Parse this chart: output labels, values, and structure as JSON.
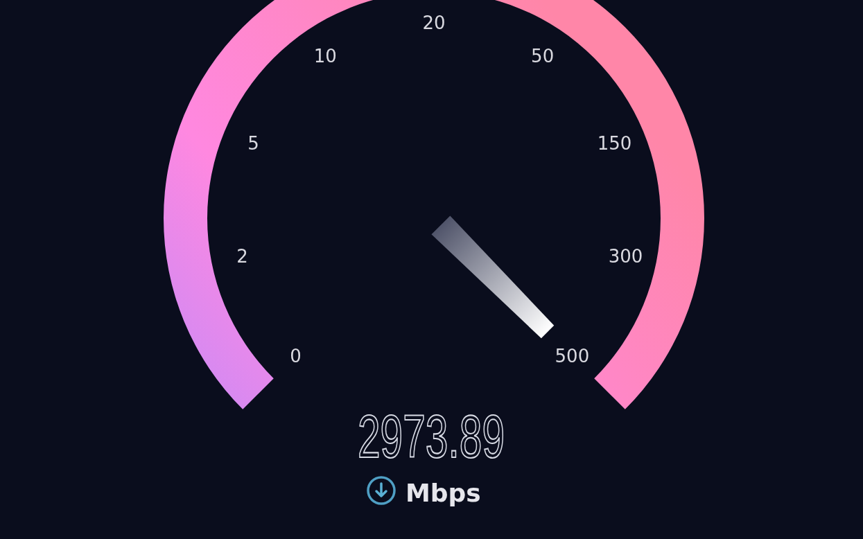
{
  "chart_data": {
    "type": "other",
    "categories": [
      "0",
      "2",
      "5",
      "10",
      "20",
      "50",
      "150",
      "300",
      "500"
    ],
    "values": [
      null,
      null,
      null,
      null,
      null,
      null,
      null,
      null,
      2973.89
    ],
    "data_labels": true,
    "ylabel": "Mbps"
  }
}
